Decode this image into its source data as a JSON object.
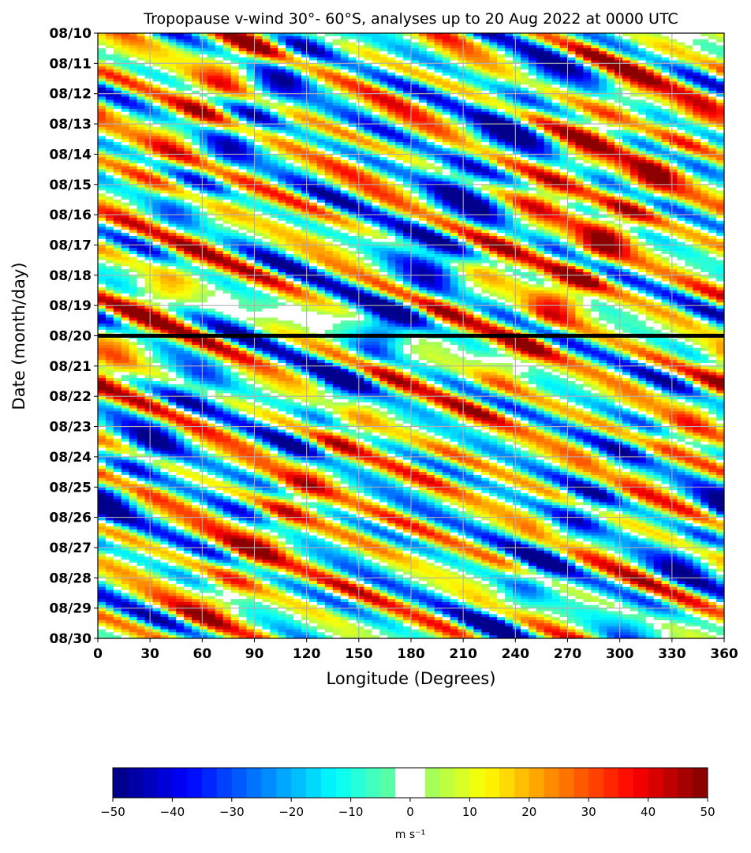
{
  "chart_data": {
    "type": "heatmap",
    "title": "Tropopause v-wind 30°- 60°S, analyses up to 20 Aug 2022 at 0000 UTC",
    "xlabel": "Longitude (Degrees)",
    "ylabel": "Date (month/day)",
    "x_ticks": [
      0,
      30,
      60,
      90,
      120,
      150,
      180,
      210,
      240,
      270,
      300,
      330,
      360
    ],
    "y_ticks": [
      "08/10",
      "08/11",
      "08/12",
      "08/13",
      "08/14",
      "08/15",
      "08/16",
      "08/17",
      "08/18",
      "08/19",
      "08/20",
      "08/21",
      "08/22",
      "08/23",
      "08/24",
      "08/25",
      "08/26",
      "08/27",
      "08/28",
      "08/29",
      "08/30"
    ],
    "xlim": [
      0,
      360
    ],
    "ylim": [
      "08/10",
      "08/30"
    ],
    "y_inverted": true,
    "grid": true,
    "analysis_cutoff_line": "08/20",
    "colorbar": {
      "label": "m s⁻¹",
      "ticks": [
        -50,
        -40,
        -30,
        -20,
        -10,
        0,
        10,
        20,
        30,
        40,
        50
      ],
      "range": [
        -50,
        50
      ],
      "step": 2.5,
      "white_band": [
        -2.5,
        2.5
      ],
      "colormap": "jet",
      "placement": "bottom"
    },
    "features": [
      {
        "type": "max",
        "lon": 275,
        "day": 4.2,
        "value": 45
      },
      {
        "type": "max",
        "lon": 285,
        "day": 7.3,
        "value": 45
      },
      {
        "type": "max",
        "lon": 15,
        "day": 10.3,
        "value": 45
      },
      {
        "type": "max",
        "lon": 100,
        "day": 16.6,
        "value": 40
      },
      {
        "type": "max",
        "lon": 75,
        "day": 1.0,
        "value": 40
      },
      {
        "type": "min",
        "lon": 105,
        "day": 1.8,
        "value": -40
      },
      {
        "type": "min",
        "lon": 220,
        "day": 3.8,
        "value": -40
      },
      {
        "type": "min",
        "lon": 170,
        "day": 9.5,
        "value": -40
      },
      {
        "type": "min",
        "lon": 265,
        "day": 17.0,
        "value": -35
      },
      {
        "type": "min",
        "lon": 15,
        "day": 14.8,
        "value": -35
      }
    ]
  }
}
